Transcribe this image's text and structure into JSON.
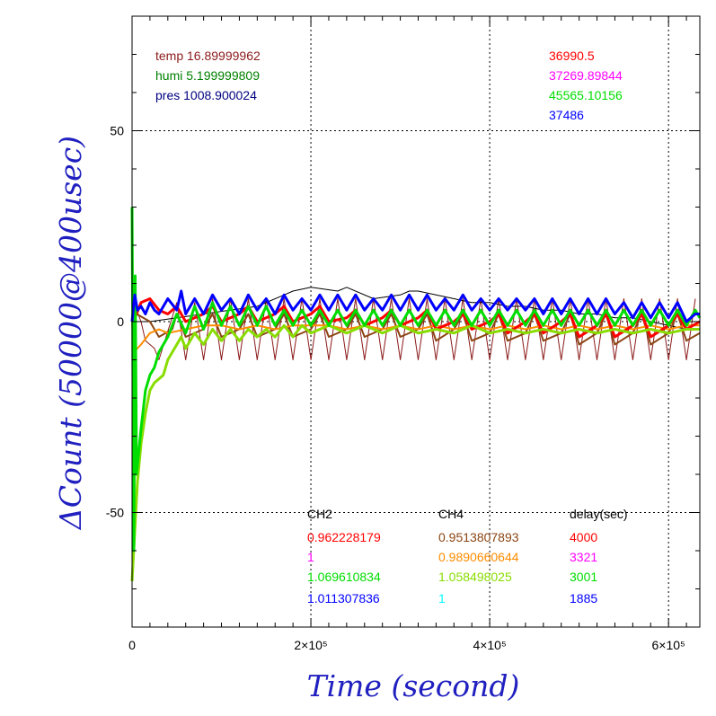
{
  "chart_data": {
    "type": "line",
    "xlabel": "Time (second)",
    "ylabel": "ΔCount (50000@400usec)",
    "xlim": [
      0,
      635000
    ],
    "ylim": [
      -80,
      80
    ],
    "x_ticks": [
      {
        "value": 0,
        "label": "0"
      },
      {
        "value": 200000,
        "label": "2×10⁵"
      },
      {
        "value": 400000,
        "label": "4×10⁵"
      },
      {
        "value": 600000,
        "label": "6×10⁵"
      }
    ],
    "y_ticks": [
      {
        "value": -50,
        "label": "-50"
      },
      {
        "value": 0,
        "label": "0"
      },
      {
        "value": 50,
        "label": "50"
      }
    ],
    "grid": "dotted, at major ticks",
    "env_readings": [
      {
        "text": "temp 16.89999962",
        "color": "#8b1a1a"
      },
      {
        "text": "humi 5.199999809",
        "color": "#008000"
      },
      {
        "text": "pres 1008.900024",
        "color": "#000080"
      }
    ],
    "mean_counts": [
      {
        "text": "36990.5",
        "color": "#ff0000"
      },
      {
        "text": "37269.89844",
        "color": "#ff00ff"
      },
      {
        "text": "45565.10156",
        "color": "#00dd00"
      },
      {
        "text": "37486",
        "color": "#0000ff"
      }
    ],
    "table": {
      "headers": [
        "CH2",
        "CH4",
        "delay(sec)"
      ],
      "rows": [
        {
          "ch2": "0.962228179",
          "ch2_color": "#ff0000",
          "ch4": "0.9513807893",
          "ch4_color": "#8b4513",
          "delay": "4000",
          "delay_color": "#ff0000"
        },
        {
          "ch2": "1",
          "ch2_color": "#ff00ff",
          "ch4": "0.9890660644",
          "ch4_color": "#ff8c00",
          "delay": "3321",
          "delay_color": "#ff00ff"
        },
        {
          "ch2": "1.069610834",
          "ch2_color": "#00dd00",
          "ch4": "1.058498025",
          "ch4_color": "#88dd00",
          "delay": "3001",
          "delay_color": "#00dd00"
        },
        {
          "ch2": "1.011307836",
          "ch2_color": "#0000ff",
          "ch4": "1",
          "ch4_color": "#00ffff",
          "delay": "1885",
          "delay_color": "#0000ff"
        }
      ]
    },
    "series": [
      {
        "color": "#8b1a1a",
        "width": 1,
        "x": [
          0,
          5000,
          10000,
          15000,
          25000,
          30000,
          50000,
          60000,
          70000,
          80000,
          90000,
          100000,
          110000,
          120000,
          130000,
          140000,
          150000,
          160000,
          170000,
          180000,
          190000,
          200000,
          210000,
          220000,
          230000,
          240000,
          250000,
          260000,
          270000,
          280000,
          290000,
          300000,
          310000,
          320000,
          330000,
          340000,
          350000,
          360000,
          370000,
          380000,
          390000,
          400000,
          410000,
          420000,
          430000,
          440000,
          450000,
          460000,
          470000,
          480000,
          490000,
          500000,
          510000,
          520000,
          530000,
          540000,
          550000,
          560000,
          570000,
          580000,
          590000,
          600000,
          610000,
          620000,
          630000
        ],
        "y": [
          0,
          3,
          0,
          -5,
          -7,
          -10,
          5,
          -10,
          5,
          -10,
          6,
          -10,
          6,
          -10,
          6,
          -10,
          6,
          -10,
          6,
          -10,
          6,
          -10,
          6,
          -10,
          6,
          -10,
          6,
          -10,
          6,
          -10,
          6,
          -10,
          6,
          -10,
          6,
          -10,
          6,
          -10,
          6,
          -10,
          6,
          -10,
          6,
          -10,
          6,
          -10,
          6,
          -10,
          6,
          -10,
          6,
          -10,
          6,
          -10,
          6,
          -10,
          6,
          -10,
          6,
          -10,
          6,
          -10,
          6,
          -10,
          6
        ]
      },
      {
        "color": "#000000",
        "width": 1,
        "x": [
          0,
          20000,
          50000,
          80000,
          110000,
          140000,
          170000,
          180000,
          200000,
          230000,
          240000,
          270000,
          300000,
          310000,
          320000,
          340000,
          360000,
          380000,
          400000,
          420000,
          440000,
          460000,
          480000,
          500000,
          520000,
          540000,
          560000,
          580000,
          600000,
          620000,
          635000
        ],
        "y": [
          0,
          0,
          1,
          2,
          3,
          4,
          7,
          8,
          9,
          8,
          9,
          6,
          7,
          8,
          8,
          7,
          6,
          5,
          5,
          4,
          4,
          3,
          3,
          2,
          2,
          1,
          1,
          0,
          -1,
          -2,
          -2
        ]
      },
      {
        "color": "#8b4513",
        "width": 2,
        "x": [
          0,
          5000,
          20000,
          30000,
          45000,
          50000,
          60000,
          80000,
          90000,
          100000,
          120000,
          130000,
          140000,
          160000,
          170000,
          180000,
          200000,
          210000,
          220000,
          240000,
          250000,
          260000,
          280000,
          290000,
          300000,
          320000,
          330000,
          340000,
          360000,
          370000,
          380000,
          400000,
          410000,
          420000,
          440000,
          450000,
          460000,
          480000,
          490000,
          500000,
          520000,
          530000,
          540000,
          560000,
          570000,
          580000,
          600000,
          610000,
          620000,
          635000
        ],
        "y": [
          0,
          2,
          0,
          -4,
          -2,
          2,
          -4,
          -2,
          2,
          -4,
          -2,
          2,
          -4,
          -2,
          2,
          -4,
          -2,
          2,
          -4,
          -2,
          2,
          -4,
          -2,
          2,
          -4,
          -2,
          2,
          -5,
          -2,
          2,
          -5,
          -3,
          2,
          -5,
          -3,
          2,
          -5,
          -3,
          2,
          -6,
          -3,
          2,
          -6,
          -3,
          2,
          -6,
          -3,
          2,
          -5,
          -3
        ]
      },
      {
        "color": "#ff8c00",
        "width": 2,
        "x": [
          0,
          2000,
          10000,
          20000,
          30000,
          40000,
          60000,
          80000,
          100000,
          120000,
          140000,
          160000,
          180000,
          200000,
          220000,
          240000,
          260000,
          280000,
          300000,
          320000,
          340000,
          360000,
          380000,
          400000,
          420000,
          440000,
          460000,
          480000,
          500000,
          520000,
          540000,
          560000,
          580000,
          600000,
          620000,
          635000
        ],
        "y": [
          0,
          -8,
          -6,
          -3,
          -2,
          -3,
          -2,
          -1,
          -1,
          -2,
          -1,
          -2,
          -1,
          -1,
          -1,
          -2,
          -1,
          -2,
          -1,
          -2,
          -1,
          -2,
          -1,
          -2,
          -1,
          -2,
          -1,
          -2,
          -1,
          -2,
          -1,
          -2,
          -1,
          -2,
          -1,
          -1
        ]
      },
      {
        "color": "#ff0000",
        "width": 3,
        "x": [
          0,
          5000,
          10000,
          20000,
          30000,
          40000,
          50000,
          60000,
          80000,
          90000,
          100000,
          120000,
          130000,
          140000,
          160000,
          170000,
          180000,
          200000,
          210000,
          220000,
          240000,
          250000,
          260000,
          280000,
          290000,
          300000,
          320000,
          330000,
          340000,
          360000,
          370000,
          380000,
          400000,
          410000,
          420000,
          440000,
          450000,
          460000,
          480000,
          490000,
          500000,
          520000,
          530000,
          540000,
          560000,
          570000,
          580000,
          600000,
          610000,
          620000,
          635000
        ],
        "y": [
          0,
          2,
          5,
          6,
          3,
          2,
          4,
          0,
          2,
          4,
          0,
          2,
          4,
          0,
          2,
          4,
          0,
          2,
          4,
          0,
          1,
          3,
          -1,
          1,
          3,
          -1,
          1,
          3,
          -2,
          0,
          2,
          -2,
          0,
          2,
          -3,
          0,
          2,
          -3,
          0,
          2,
          -4,
          -1,
          2,
          -4,
          -1,
          2,
          -4,
          -1,
          2,
          -2,
          0
        ]
      },
      {
        "color": "#88dd00",
        "width": 3,
        "x": [
          0,
          3000,
          6000,
          10000,
          15000,
          20000,
          25000,
          30000,
          35000,
          40000,
          45000,
          50000,
          55000,
          60000,
          70000,
          80000,
          90000,
          100000,
          110000,
          120000,
          130000,
          140000,
          150000,
          160000,
          170000,
          180000,
          190000,
          200000,
          220000,
          240000,
          260000,
          280000,
          300000,
          320000,
          340000,
          360000,
          380000,
          400000,
          420000,
          440000,
          460000,
          480000,
          500000,
          520000,
          540000,
          560000,
          580000,
          600000,
          620000,
          635000
        ],
        "y": [
          -68,
          -55,
          -42,
          -32,
          -24,
          -18,
          -16,
          -15,
          -14,
          -10,
          -8,
          -6,
          -4,
          -7,
          -3,
          -6,
          -2,
          -5,
          -2,
          -5,
          -2,
          -4,
          -2,
          -4,
          -1,
          -4,
          -1,
          -3,
          -1,
          -3,
          -1,
          -3,
          -1,
          -3,
          -2,
          -3,
          -1,
          -3,
          -2,
          -3,
          -2,
          -3,
          -2,
          -3,
          -2,
          -3,
          -2,
          -3,
          -2,
          -2
        ]
      },
      {
        "color": "#00dd00",
        "width": 3,
        "x": [
          0,
          2000,
          3500,
          5000,
          10000,
          15000,
          20000,
          25000,
          30000,
          40000,
          50000,
          60000,
          70000,
          80000,
          90000,
          100000,
          110000,
          120000,
          130000,
          140000,
          150000,
          160000,
          170000,
          180000,
          190000,
          200000,
          210000,
          220000,
          230000,
          240000,
          250000,
          260000,
          270000,
          280000,
          290000,
          300000,
          310000,
          320000,
          330000,
          340000,
          350000,
          360000,
          370000,
          380000,
          390000,
          400000,
          410000,
          420000,
          430000,
          440000,
          450000,
          460000,
          470000,
          480000,
          490000,
          500000,
          510000,
          520000,
          530000,
          540000,
          550000,
          560000,
          570000,
          580000,
          590000,
          600000,
          610000,
          620000,
          630000,
          635000
        ],
        "y": [
          30,
          -60,
          12,
          -40,
          -28,
          -18,
          -14,
          -12,
          -8,
          -4,
          2,
          -3,
          4,
          -2,
          5,
          -1,
          4,
          -1,
          4,
          -1,
          4,
          -1,
          3,
          -1,
          3,
          -1,
          3,
          -1,
          3,
          -1,
          3,
          -1,
          3,
          -1,
          3,
          -1,
          3,
          -1,
          3,
          -1,
          3,
          -1,
          3,
          -1,
          3,
          -1,
          3,
          -1,
          3,
          -1,
          3,
          -1,
          3,
          -1,
          3,
          -1,
          3,
          -1,
          3,
          -1,
          3,
          -1,
          3,
          -1,
          3,
          -1,
          3,
          -1,
          3,
          1
        ]
      },
      {
        "color": "#0000ff",
        "width": 3,
        "x": [
          0,
          3000,
          6000,
          10000,
          15000,
          20000,
          25000,
          30000,
          40000,
          50000,
          55000,
          60000,
          70000,
          80000,
          90000,
          100000,
          110000,
          120000,
          130000,
          140000,
          150000,
          160000,
          170000,
          180000,
          190000,
          200000,
          210000,
          220000,
          230000,
          240000,
          250000,
          260000,
          270000,
          280000,
          290000,
          300000,
          310000,
          320000,
          330000,
          340000,
          350000,
          360000,
          370000,
          380000,
          390000,
          400000,
          410000,
          420000,
          430000,
          440000,
          450000,
          460000,
          470000,
          480000,
          490000,
          500000,
          510000,
          520000,
          530000,
          540000,
          550000,
          560000,
          570000,
          580000,
          590000,
          600000,
          610000,
          620000,
          630000,
          635000
        ],
        "y": [
          0,
          7,
          3,
          4,
          2,
          5,
          3,
          2,
          6,
          3,
          8,
          2,
          6,
          2,
          7,
          3,
          6,
          2,
          7,
          3,
          6,
          2,
          7,
          3,
          6,
          3,
          7,
          3,
          7,
          3,
          7,
          3,
          6,
          3,
          7,
          3,
          7,
          3,
          7,
          3,
          6,
          3,
          7,
          3,
          6,
          3,
          6,
          3,
          6,
          3,
          6,
          2,
          6,
          2,
          6,
          2,
          6,
          2,
          6,
          2,
          5,
          1,
          5,
          1,
          5,
          1,
          5,
          0,
          2,
          2
        ]
      }
    ]
  }
}
